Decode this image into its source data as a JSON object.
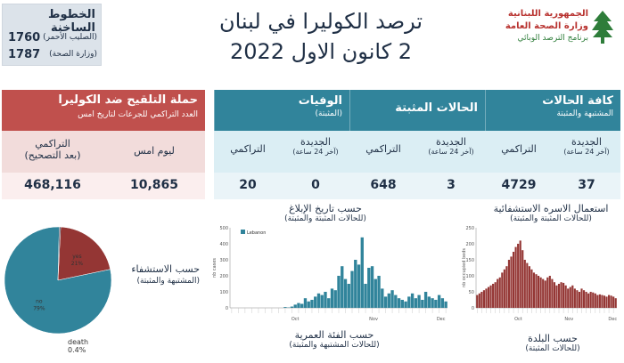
{
  "hotline": {
    "title": "الخطوط الساخنة",
    "rows": [
      {
        "number": "1760",
        "who": "(الصليب الأحمر)"
      },
      {
        "number": "1787",
        "who": "(وزارة الصحة)"
      }
    ]
  },
  "header": {
    "title_line1": "ترصد الكوليرا في لبنان",
    "title_line2": "2 كانون الاول 2022"
  },
  "logo": {
    "line1": "الجمهورية اللبنانية",
    "line2": "وزارة الصحة العامة",
    "line3": "برنامج الترصد الوبائي"
  },
  "vaccination": {
    "title": "حملة التلقيح ضد الكوليرا",
    "subtitle": "العدد التراكمي للجرعات لتاريخ امس",
    "cols": [
      {
        "label": "التراكمي",
        "sub": "(بعد التصحيح)",
        "value": "468,116"
      },
      {
        "label": "ليوم امس",
        "sub": "",
        "value": "10,865"
      }
    ]
  },
  "cases": {
    "groups": [
      {
        "title": "الوفيات",
        "sub": "(المثبتة)"
      },
      {
        "title": "الحالات المثبتة",
        "sub": ""
      },
      {
        "title": "كافة الحالات",
        "sub": "المشتبهة والمثبتة"
      }
    ],
    "cols": [
      {
        "label": "التراكمي",
        "sub": "",
        "value": "20"
      },
      {
        "label": "الجديدة",
        "sub": "(آخر 24 ساعة)",
        "value": "0"
      },
      {
        "label": "التراكمي",
        "sub": "",
        "value": "648"
      },
      {
        "label": "الجديدة",
        "sub": "(آخر 24 ساعة)",
        "value": "3"
      },
      {
        "label": "التراكمي",
        "sub": "",
        "value": "4729"
      },
      {
        "label": "الجديدة",
        "sub": "(آخر 24 ساعة)",
        "value": "37"
      }
    ]
  },
  "bottom": {
    "stay_title": "حسب الاستشفاء",
    "stay_sub": "(المشتبهة والمثبتة)",
    "report_title": "حسب تاريخ الإبلاغ",
    "report_sub": "(للحالات المثبتة والمثبتة)",
    "age_title": "حسب الفئة العمرية",
    "age_sub": "(للحالات المشتبهة والمثبتة)",
    "hosp_title": "استعمال الاسره الاستشفائية",
    "hosp_sub": "(للحالات المثبتة والمثبتة)",
    "district_title": "حسب البلدة",
    "district_sub": "(للحالات المثبتة)",
    "death_label": "death",
    "death_pct": "0.4%"
  },
  "chart_data": [
    {
      "type": "pie",
      "categories": [
        "yes",
        "no",
        "death"
      ],
      "values": [
        21,
        79,
        0.4
      ],
      "labels": [
        "yes\n21%",
        "no\n79%",
        "death\n0.4%"
      ],
      "colors": [
        "#943634",
        "#31849b",
        "#1f2f45"
      ]
    },
    {
      "type": "bar",
      "legend": [
        "Lebanon"
      ],
      "ylabel": "nb cases",
      "ylim": [
        0,
        500
      ],
      "yticks": [
        0,
        100,
        200,
        300,
        400,
        500
      ],
      "xticks": [
        "Oct",
        "Nov",
        "Dec"
      ],
      "values": [
        0,
        0,
        0,
        0,
        0,
        0,
        0,
        0,
        0,
        0,
        0,
        0,
        0,
        0,
        0,
        0,
        5,
        2,
        8,
        20,
        30,
        25,
        60,
        40,
        50,
        70,
        90,
        80,
        100,
        60,
        120,
        110,
        200,
        260,
        180,
        150,
        230,
        300,
        270,
        440,
        150,
        250,
        260,
        180,
        200,
        120,
        70,
        90,
        110,
        80,
        60,
        50,
        40,
        70,
        90,
        60,
        80,
        50,
        100,
        70,
        60,
        50,
        80,
        60,
        40
      ],
      "color": "#31849b"
    },
    {
      "type": "bar",
      "ylabel": "nb occupied beds",
      "ylim": [
        0,
        250
      ],
      "yticks": [
        0,
        50,
        100,
        150,
        200,
        250
      ],
      "xticks": [
        "Oct",
        "Nov",
        "Dec"
      ],
      "values": [
        40,
        45,
        50,
        55,
        60,
        65,
        70,
        75,
        80,
        90,
        95,
        110,
        120,
        130,
        150,
        160,
        175,
        190,
        200,
        210,
        180,
        150,
        140,
        130,
        120,
        110,
        105,
        100,
        95,
        90,
        85,
        95,
        100,
        90,
        80,
        70,
        75,
        80,
        78,
        70,
        60,
        65,
        70,
        60,
        55,
        50,
        60,
        55,
        50,
        45,
        50,
        48,
        45,
        40,
        42,
        40,
        38,
        35,
        40,
        38,
        35,
        30
      ],
      "color": "#943634"
    }
  ]
}
